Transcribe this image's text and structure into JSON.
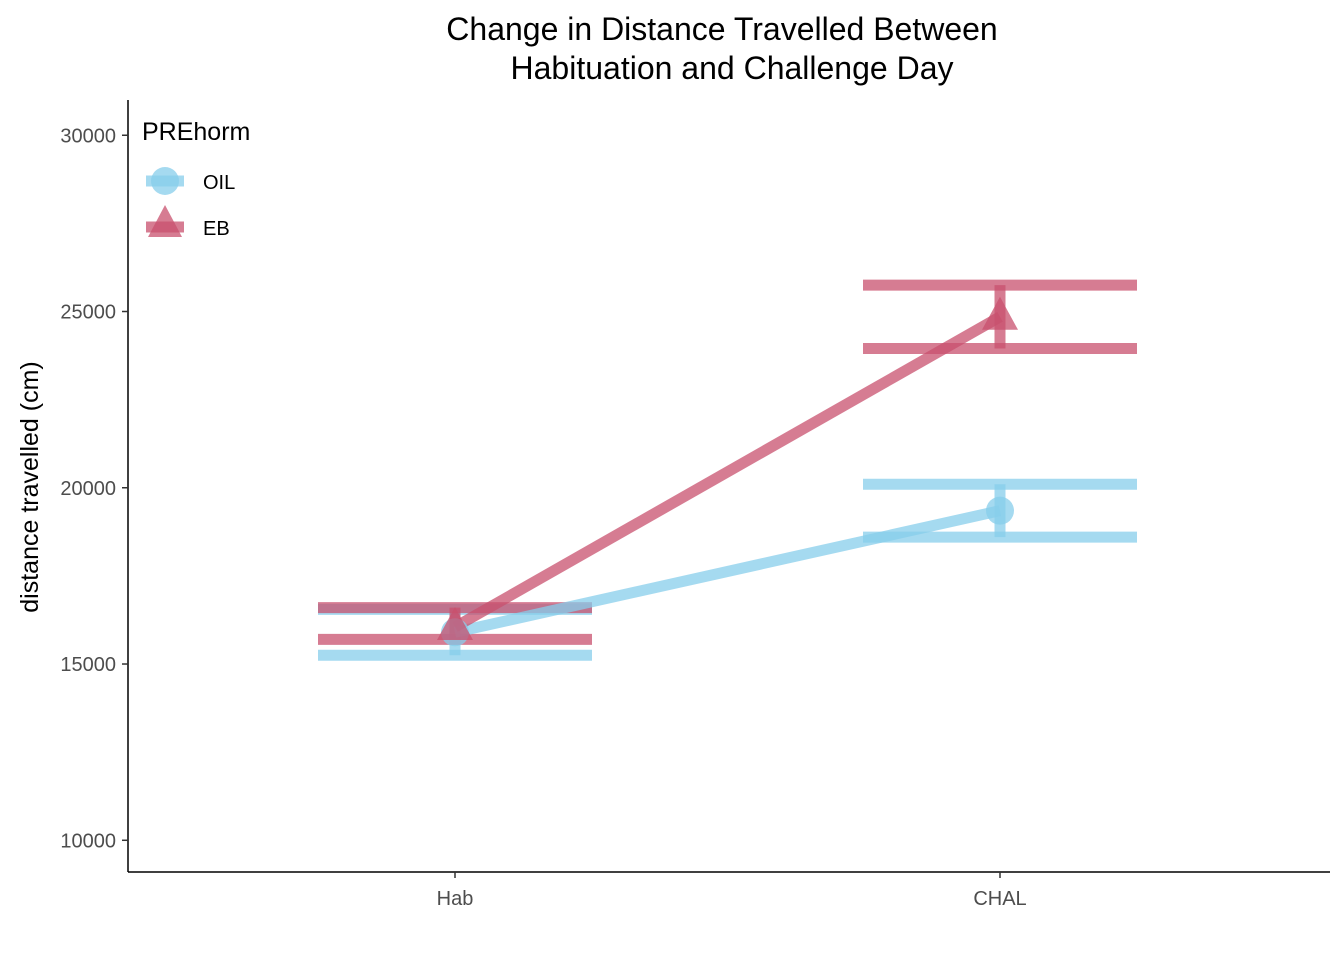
{
  "chart_data": {
    "type": "line",
    "title_lines": [
      "Change in Distance Travelled Between",
      "Habituation and Challenge Day"
    ],
    "xlabel": "",
    "ylabel": "distance travelled (cm)",
    "categories": [
      "Hab",
      "CHAL"
    ],
    "ylim": [
      9100,
      31000
    ],
    "yticks": [
      10000,
      15000,
      20000,
      25000,
      30000
    ],
    "grid": false,
    "legend": {
      "title": "PREhorm",
      "position": "top-left",
      "entries": [
        "OIL",
        "EB"
      ]
    },
    "series": [
      {
        "name": "OIL",
        "color": "#87ceeb",
        "shape": "circle",
        "values": [
          15900,
          19350
        ],
        "error_low": [
          15250,
          18600
        ],
        "error_high": [
          16550,
          20100
        ]
      },
      {
        "name": "EB",
        "color": "#c8506e",
        "shape": "triangle",
        "values": [
          16050,
          24850
        ],
        "error_low": [
          15700,
          23950
        ],
        "error_high": [
          16600,
          25750
        ]
      }
    ]
  }
}
